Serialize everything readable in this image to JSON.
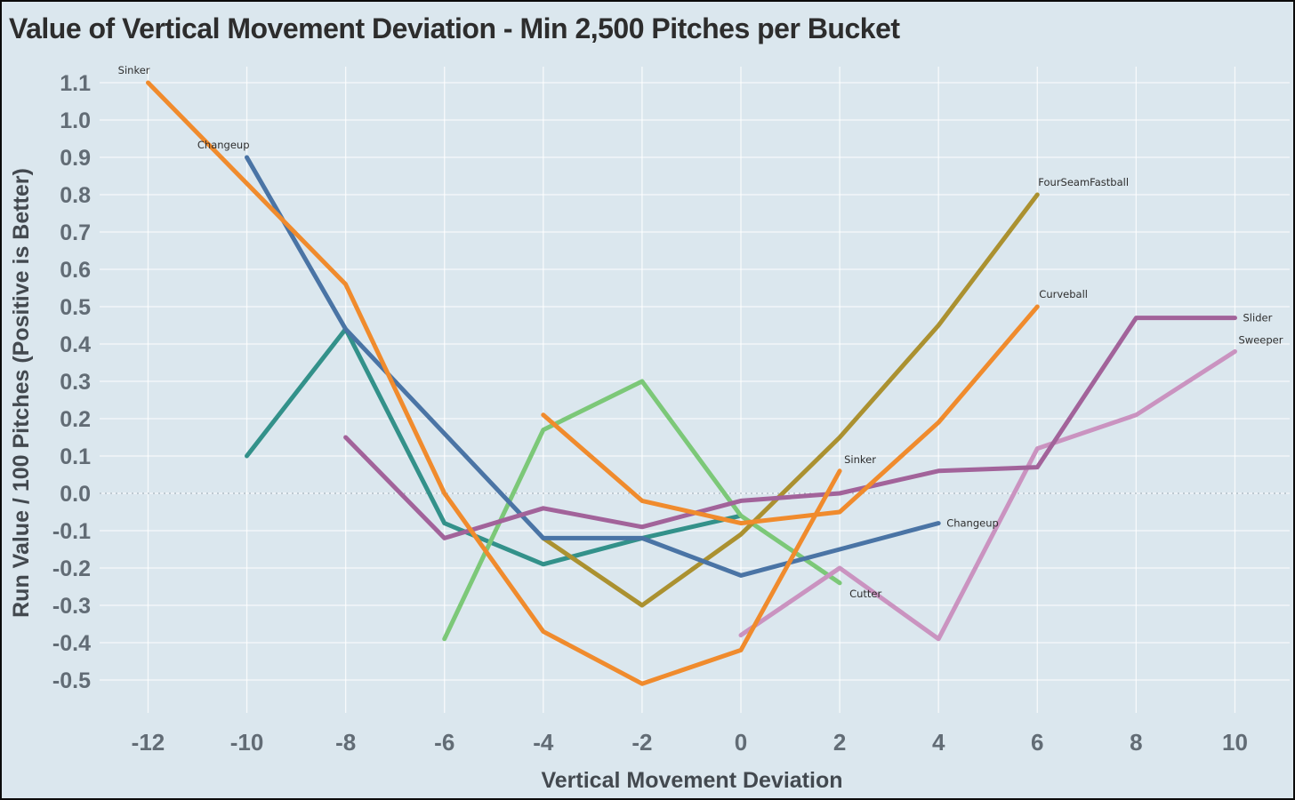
{
  "page": {
    "title": "Value of Vertical Movement Deviation - Min 2,500 Pitches per Bucket"
  },
  "chart_data": {
    "type": "line",
    "title": "Value of Vertical Movement Deviation - Min 2,500 Pitches per Bucket",
    "xlabel": "Vertical Movement Deviation",
    "ylabel": "Run Value / 100 Pitches (Positive is Better)",
    "x_ticks": [
      "-12",
      "-10",
      "-8",
      "-6",
      "-4",
      "-2",
      "0",
      "2",
      "4",
      "6",
      "8",
      "10"
    ],
    "y_ticks": [
      "1.1",
      "1.0",
      "0.9",
      "0.8",
      "0.7",
      "0.6",
      "0.5",
      "0.4",
      "0.3",
      "0.2",
      "0.1",
      "0.0",
      "-0.1",
      "-0.2",
      "-0.3",
      "-0.4",
      "-0.5"
    ],
    "xlim": [
      -13.1,
      11.2
    ],
    "ylim": [
      -0.58,
      1.16
    ],
    "grid": true,
    "zero_line": "dotted",
    "legend": "inline-end-labels",
    "background_color": "#dbe7ee",
    "series": [
      {
        "id": "unlabeled-teal",
        "name": "",
        "color": "#33918a",
        "points": [
          [
            -10,
            0.1
          ],
          [
            -8,
            0.44
          ],
          [
            -6,
            -0.08
          ],
          [
            -4,
            -0.19
          ],
          [
            -2,
            -0.12
          ],
          [
            0,
            -0.06
          ]
        ],
        "labels": {}
      },
      {
        "id": "cutter",
        "name": "Cutter",
        "color": "#7cc878",
        "points": [
          [
            -6,
            -0.39
          ],
          [
            -4,
            0.17
          ],
          [
            -2,
            0.3
          ],
          [
            0,
            -0.06
          ],
          [
            2,
            -0.24
          ]
        ],
        "labels": {
          "end": {
            "text": "Cutter",
            "dx": 11,
            "dy": 16,
            "anchor": "start"
          }
        }
      },
      {
        "id": "fourseamfastball",
        "name": "FourSeamFastball",
        "color": "#ab9130",
        "points": [
          [
            -4,
            -0.12
          ],
          [
            -2,
            -0.3
          ],
          [
            0,
            -0.11
          ],
          [
            2,
            0.15
          ],
          [
            4,
            0.45
          ],
          [
            6,
            0.8
          ]
        ],
        "labels": {
          "end": {
            "text": "FourSeamFastball",
            "dx": 1,
            "dy": -10,
            "anchor": "start"
          }
        }
      },
      {
        "id": "changeup",
        "name": "Changeup",
        "color": "#4a74a5",
        "points": [
          [
            -10,
            0.9
          ],
          [
            -8,
            0.44
          ],
          [
            -6,
            0.16
          ],
          [
            -4,
            -0.12
          ],
          [
            -2,
            -0.12
          ],
          [
            0,
            -0.22
          ],
          [
            2,
            -0.15
          ],
          [
            4,
            -0.08
          ]
        ],
        "labels": {
          "start": {
            "text": "Changeup",
            "dx": 3,
            "dy": -10,
            "anchor": "end"
          },
          "end": {
            "text": "Changeup",
            "dx": 9,
            "dy": 4,
            "anchor": "start"
          }
        }
      },
      {
        "id": "sweeper",
        "name": "Sweeper",
        "color": "#ca93c0",
        "points": [
          [
            0,
            -0.38
          ],
          [
            2,
            -0.2
          ],
          [
            4,
            -0.39
          ],
          [
            6,
            0.12
          ],
          [
            8,
            0.21
          ],
          [
            10,
            0.38
          ]
        ],
        "labels": {
          "end": {
            "text": "Sweeper",
            "dx": 4,
            "dy": -9,
            "anchor": "start"
          }
        }
      },
      {
        "id": "slider",
        "name": "Slider",
        "color": "#a2639a",
        "points": [
          [
            -8,
            0.15
          ],
          [
            -6,
            -0.12
          ],
          [
            -4,
            -0.04
          ],
          [
            -2,
            -0.09
          ],
          [
            0,
            -0.02
          ],
          [
            2,
            0.0
          ],
          [
            4,
            0.06
          ],
          [
            6,
            0.07
          ],
          [
            8,
            0.47
          ],
          [
            10,
            0.47
          ]
        ],
        "labels": {
          "end": {
            "text": "Slider",
            "dx": 9,
            "dy": 4,
            "anchor": "start"
          }
        }
      },
      {
        "id": "curveball",
        "name": "Curveball",
        "color": "#f08b2d",
        "points": [
          [
            -4,
            0.21
          ],
          [
            -2,
            -0.02
          ],
          [
            0,
            -0.08
          ],
          [
            2,
            -0.05
          ],
          [
            4,
            0.19
          ],
          [
            6,
            0.5
          ]
        ],
        "labels": {
          "end": {
            "text": "Curveball",
            "dx": 2,
            "dy": -10,
            "anchor": "start"
          }
        }
      },
      {
        "id": "sinker",
        "name": "Sinker",
        "color": "#f08b2d",
        "points": [
          [
            -12,
            1.1
          ],
          [
            -10,
            0.83
          ],
          [
            -8,
            0.56
          ],
          [
            -6,
            0.0
          ],
          [
            -4,
            -0.37
          ],
          [
            -2,
            -0.51
          ],
          [
            0,
            -0.42
          ],
          [
            2,
            0.06
          ]
        ],
        "labels": {
          "start": {
            "text": "Sinker",
            "dx": 2,
            "dy": -10,
            "anchor": "end"
          },
          "end": {
            "text": "Sinker",
            "dx": 5,
            "dy": -9,
            "anchor": "start"
          }
        }
      }
    ]
  }
}
